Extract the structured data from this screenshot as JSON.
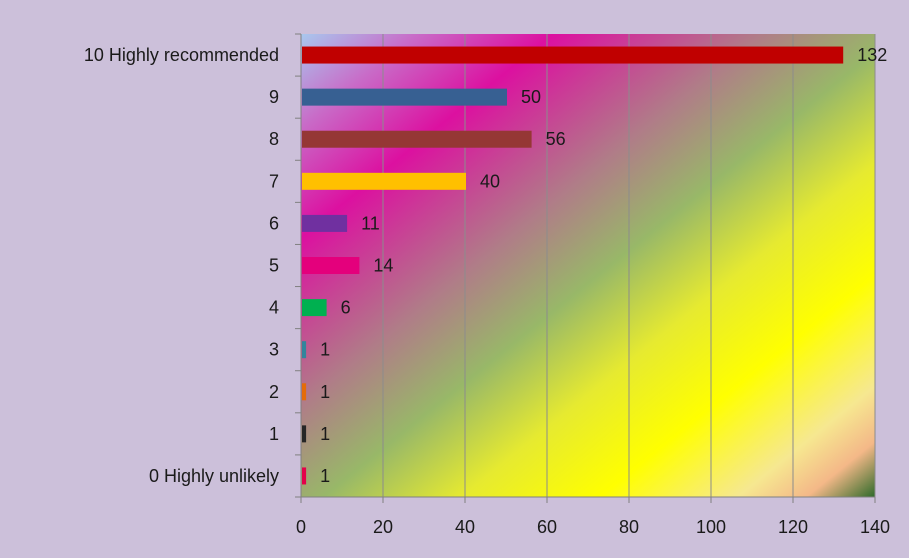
{
  "chart_data": {
    "type": "bar",
    "orientation": "horizontal",
    "categories": [
      "10 Highly recommended",
      "9",
      "8",
      "7",
      "6",
      "5",
      "4",
      "3",
      "2",
      "1",
      "0 Highly unlikely"
    ],
    "values": [
      132,
      50,
      56,
      40,
      11,
      14,
      6,
      1,
      1,
      1,
      1
    ],
    "bar_colors": [
      "#c00000",
      "#376092",
      "#953735",
      "#ffc000",
      "#7030a0",
      "#e4007c",
      "#00b050",
      "#31859c",
      "#e46c0a",
      "#262626",
      "#e4004a"
    ],
    "xlim": [
      0,
      140
    ],
    "x_ticks": [
      0,
      20,
      40,
      60,
      80,
      100,
      120,
      140
    ],
    "grid": "vertical",
    "legend": "none",
    "title": "",
    "xlabel": "",
    "ylabel": ""
  }
}
